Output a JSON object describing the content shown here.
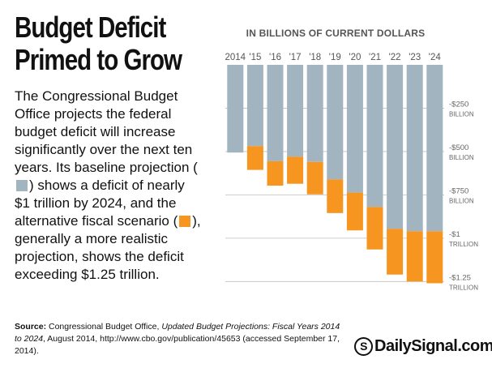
{
  "headline": {
    "line1": "Budget Deficit",
    "line2": "Primed to Grow"
  },
  "blurb": {
    "part1": "The Congressional Budget Office projects the federal budget deficit will increase significantly over the next ten years. Its baseline projection (",
    "part2": ") shows a deficit of nearly $1 trillion by 2024, and the alternative fiscal scenario (",
    "part3": "), generally a more realistic projection, shows the deficit exceeding $1.25 trillion."
  },
  "colors": {
    "baseline": "#a2b4c0",
    "alternative": "#f6951f",
    "axis_text": "#666666",
    "gridline": "#bfbfbf"
  },
  "chart_data": {
    "type": "bar",
    "title": "IN BILLIONS OF CURRENT DOLLARS",
    "categories": [
      "2014",
      "'15",
      "'16",
      "'17",
      "'18",
      "'19",
      "'20",
      "'21",
      "'22",
      "'23",
      "'24"
    ],
    "series": [
      {
        "name": "Baseline projection",
        "values": [
          -506,
          -469,
          -556,
          -530,
          -560,
          -661,
          -737,
          -820,
          -946,
          -960,
          -960
        ]
      },
      {
        "name": "Alternative fiscal scenario",
        "values": [
          -506,
          -606,
          -697,
          -686,
          -747,
          -855,
          -955,
          -1065,
          -1210,
          -1250,
          -1260
        ]
      }
    ],
    "yticks": [
      {
        "value": -250,
        "line1": "-$250",
        "line2": "BILLION"
      },
      {
        "value": -500,
        "line1": "-$500",
        "line2": "BILLION"
      },
      {
        "value": -750,
        "line1": "-$750",
        "line2": "BILLION"
      },
      {
        "value": -1000,
        "line1": "-$1",
        "line2": "TRILLION"
      },
      {
        "value": -1250,
        "line1": "-$1.25",
        "line2": "TRILLION"
      }
    ],
    "ylim": [
      -1300,
      0
    ]
  },
  "source": {
    "label": "Source:",
    "text1": " Congressional Budget Office, ",
    "italic": "Updated Budget Projections: Fiscal Years 2014 to 2024",
    "text2": ", August 2014, http://www.cbo.gov/publication/45653 (accessed September 17, 2014)."
  },
  "brand": {
    "logo": "S",
    "name": "DailySignal.com"
  }
}
